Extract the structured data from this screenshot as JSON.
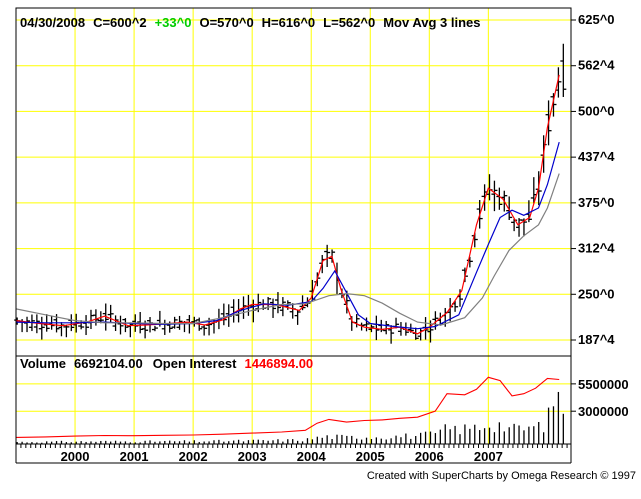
{
  "header": {
    "date": "04/30/2008",
    "close": "C=600^2",
    "change": "+33^0",
    "open": "O=570^0",
    "high": "H=616^0",
    "low": "L=562^0",
    "indicator": "Mov Avg 3 lines"
  },
  "volume_panel": {
    "volume_label": "Volume",
    "volume_value": "6692104.00",
    "oi_label": "Open Interest",
    "oi_value": "1446894.00"
  },
  "footer": {
    "credit": "Created with SuperCharts by Omega Research © 1997"
  },
  "colors": {
    "background": "#ffffff",
    "grid": "#ffff00",
    "frame": "#000000",
    "price_bars": "#000000",
    "ma_fast": "#ff0000",
    "ma_mid": "#0000cc",
    "ma_slow": "#808080",
    "change": "#00cc00",
    "open_interest": "#ff0000",
    "volume_bars": "#000000"
  },
  "chart_data": [
    {
      "type": "ohlc",
      "title": "",
      "x_tick_labels": [
        "2000",
        "2001",
        "2002",
        "2003",
        "2004",
        "2005",
        "2006",
        "2007"
      ],
      "y_tick_labels": [
        "625^0",
        "562^4",
        "500^0",
        "437^4",
        "375^0",
        "312^4",
        "250^0",
        "187^4"
      ],
      "ylim": [
        175,
        640
      ],
      "grid": true,
      "series": [
        {
          "name": "Mov Avg 3 lines",
          "role": "ma_fast",
          "points": [
            [
              1999.0,
              214
            ],
            [
              1999.4,
              210
            ],
            [
              1999.8,
              207
            ],
            [
              2000.2,
              212
            ],
            [
              2000.5,
              220
            ],
            [
              2000.9,
              207
            ],
            [
              2001.2,
              208
            ],
            [
              2001.6,
              210
            ],
            [
              2001.9,
              212
            ],
            [
              2002.2,
              208
            ],
            [
              2002.5,
              215
            ],
            [
              2002.8,
              230
            ],
            [
              2003.0,
              236
            ],
            [
              2003.4,
              236
            ],
            [
              2003.8,
              228
            ],
            [
              2004.0,
              245
            ],
            [
              2004.2,
              296
            ],
            [
              2004.35,
              302
            ],
            [
              2004.5,
              258
            ],
            [
              2004.7,
              212
            ],
            [
              2004.9,
              205
            ],
            [
              2005.2,
              202
            ],
            [
              2005.5,
              205
            ],
            [
              2005.8,
              196
            ],
            [
              2006.0,
              205
            ],
            [
              2006.3,
              225
            ],
            [
              2006.55,
              255
            ],
            [
              2006.8,
              345
            ],
            [
              2007.0,
              395
            ],
            [
              2007.25,
              380
            ],
            [
              2007.5,
              345
            ],
            [
              2007.7,
              355
            ],
            [
              2007.85,
              395
            ],
            [
              2008.0,
              478
            ],
            [
              2008.2,
              550
            ]
          ]
        },
        {
          "role": "ma_mid",
          "points": [
            [
              1999.0,
              212
            ],
            [
              1999.5,
              211
            ],
            [
              2000.0,
              211
            ],
            [
              2000.5,
              212
            ],
            [
              2001.0,
              210
            ],
            [
              2001.5,
              209
            ],
            [
              2002.0,
              210
            ],
            [
              2002.4,
              214
            ],
            [
              2002.8,
              228
            ],
            [
              2003.2,
              237
            ],
            [
              2003.6,
              235
            ],
            [
              2004.0,
              240
            ],
            [
              2004.2,
              258
            ],
            [
              2004.4,
              282
            ],
            [
              2004.6,
              252
            ],
            [
              2004.8,
              222
            ],
            [
              2005.0,
              210
            ],
            [
              2005.4,
              206
            ],
            [
              2005.8,
              203
            ],
            [
              2006.1,
              206
            ],
            [
              2006.5,
              222
            ],
            [
              2006.8,
              280
            ],
            [
              2007.0,
              318
            ],
            [
              2007.2,
              355
            ],
            [
              2007.4,
              365
            ],
            [
              2007.6,
              358
            ],
            [
              2007.85,
              368
            ],
            [
              2008.0,
              400
            ],
            [
              2008.2,
              458
            ]
          ]
        },
        {
          "role": "ma_slow",
          "points": [
            [
              1999.0,
              230
            ],
            [
              1999.5,
              222
            ],
            [
              2000.0,
              214
            ],
            [
              2000.5,
              211
            ],
            [
              2001.0,
              211
            ],
            [
              2001.5,
              210
            ],
            [
              2002.0,
              210
            ],
            [
              2002.5,
              218
            ],
            [
              2003.0,
              228
            ],
            [
              2003.5,
              236
            ],
            [
              2003.9,
              237
            ],
            [
              2004.3,
              248
            ],
            [
              2004.6,
              251
            ],
            [
              2004.9,
              248
            ],
            [
              2005.2,
              238
            ],
            [
              2005.5,
              224
            ],
            [
              2005.8,
              212
            ],
            [
              2006.2,
              208
            ],
            [
              2006.6,
              218
            ],
            [
              2006.9,
              245
            ],
            [
              2007.1,
              275
            ],
            [
              2007.35,
              310
            ],
            [
              2007.6,
              330
            ],
            [
              2007.85,
              345
            ],
            [
              2008.0,
              368
            ],
            [
              2008.2,
              415
            ]
          ]
        }
      ]
    },
    {
      "type": "bar",
      "title": "",
      "y_tick_labels": [
        "5500000",
        "3000000"
      ],
      "series": [
        {
          "name": "Volume",
          "role": "volume"
        },
        {
          "name": "Open Interest",
          "role": "open_interest",
          "points": [
            [
              1999.0,
              600000
            ],
            [
              1999.5,
              650000
            ],
            [
              2000.0,
              720000
            ],
            [
              2000.5,
              780000
            ],
            [
              2001.0,
              760000
            ],
            [
              2001.5,
              800000
            ],
            [
              2002.0,
              820000
            ],
            [
              2002.5,
              900000
            ],
            [
              2003.0,
              1000000
            ],
            [
              2003.5,
              1100000
            ],
            [
              2003.9,
              1250000
            ],
            [
              2004.1,
              1900000
            ],
            [
              2004.3,
              2250000
            ],
            [
              2004.6,
              2000000
            ],
            [
              2004.9,
              2150000
            ],
            [
              2005.2,
              2200000
            ],
            [
              2005.5,
              2350000
            ],
            [
              2005.8,
              2450000
            ],
            [
              2006.1,
              3000000
            ],
            [
              2006.3,
              4600000
            ],
            [
              2006.6,
              4500000
            ],
            [
              2006.8,
              5000000
            ],
            [
              2007.0,
              6100000
            ],
            [
              2007.2,
              5800000
            ],
            [
              2007.4,
              4400000
            ],
            [
              2007.6,
              4600000
            ],
            [
              2007.8,
              5100000
            ],
            [
              2008.0,
              6000000
            ],
            [
              2008.2,
              5900000
            ]
          ]
        }
      ]
    }
  ]
}
